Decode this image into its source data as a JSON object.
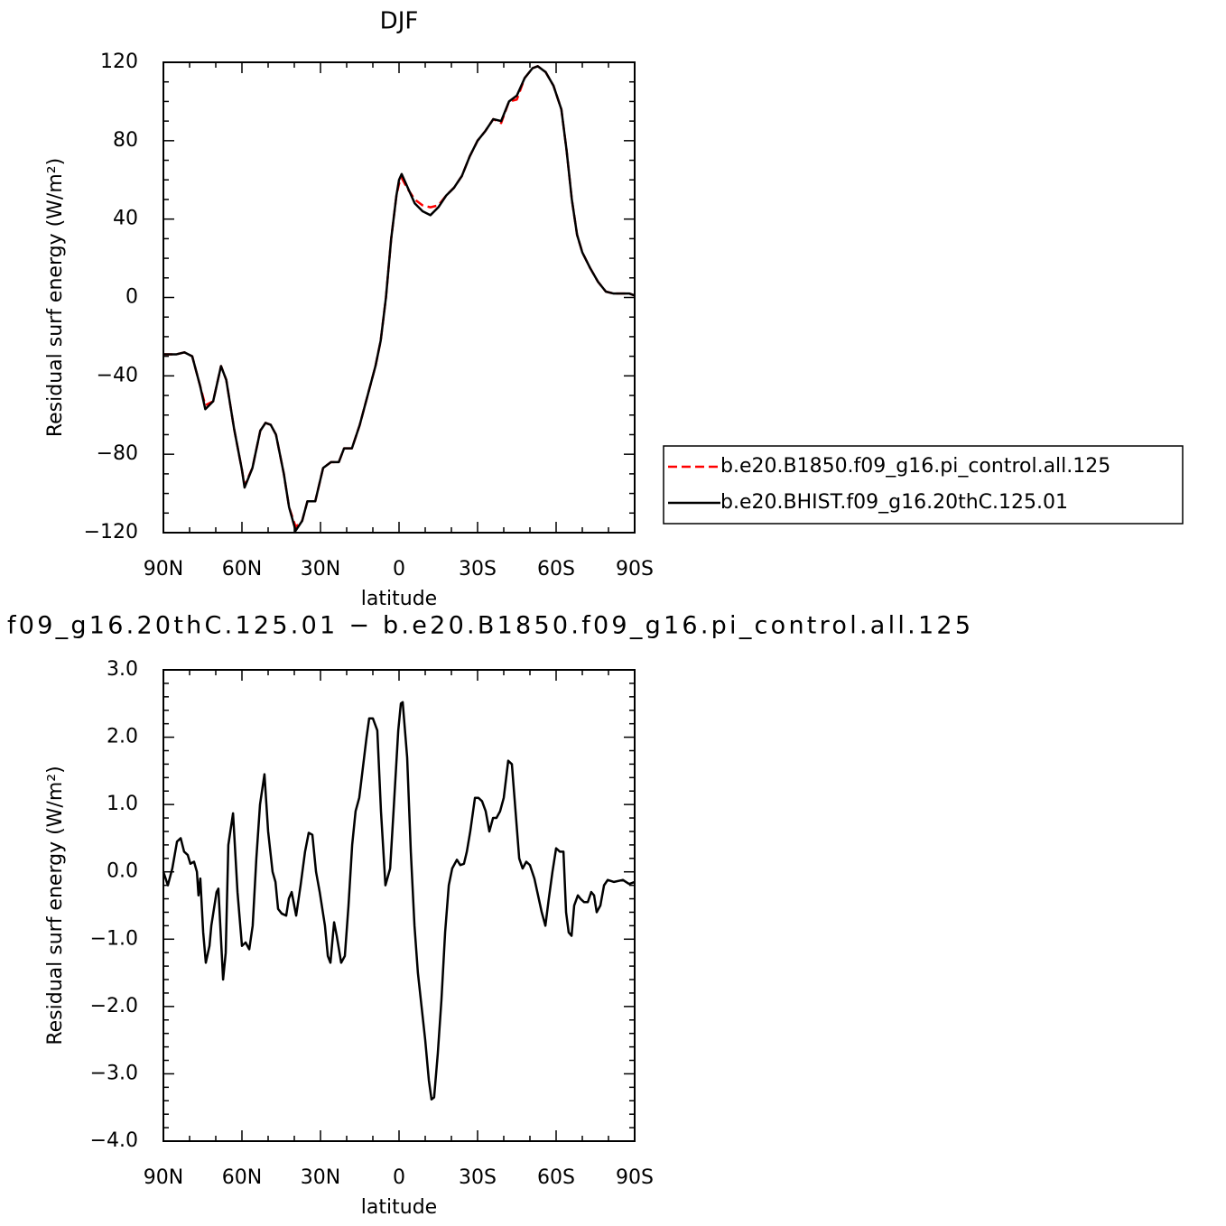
{
  "chart_data": [
    {
      "type": "line",
      "title": "DJF",
      "xlabel": "latitude",
      "ylabel": "Residual surf energy (W/m²)",
      "xlim": [
        90,
        -90
      ],
      "xticks": [
        {
          "value": 90,
          "label": "90N"
        },
        {
          "value": 60,
          "label": "60N"
        },
        {
          "value": 30,
          "label": "30N"
        },
        0,
        {
          "value": -30,
          "label": "30S"
        },
        {
          "value": -60,
          "label": "60S"
        },
        {
          "value": -90,
          "label": "90S"
        }
      ],
      "ylim": [
        -120,
        120
      ],
      "yticks": [
        {
          "value": -120,
          "label": "−120"
        },
        {
          "value": -80,
          "label": "−80"
        },
        {
          "value": -40,
          "label": "−40"
        },
        0,
        40,
        80,
        120
      ],
      "x": [
        90,
        85,
        82,
        79,
        76,
        74,
        71,
        68,
        66,
        63,
        60,
        59,
        56,
        53,
        51,
        49,
        47,
        44,
        42,
        39.5,
        37,
        35,
        32,
        29,
        26,
        23,
        21,
        18,
        15,
        12,
        9,
        7,
        5,
        3,
        1,
        0,
        -1,
        -3,
        -6,
        -9,
        -12,
        -15,
        -18,
        -21,
        -24,
        -27,
        -30,
        -33,
        -36,
        -39,
        -42,
        -45,
        -48,
        -51,
        -53,
        -56,
        -59,
        -62,
        -64,
        -66,
        -68,
        -70,
        -73,
        -76,
        -79,
        -82,
        -85,
        -88,
        -90
      ],
      "series": [
        {
          "name": "b.e20.B1850.f09_g16.pi_control.all.125",
          "color": "#ff0000",
          "line_style": "dashed",
          "values": [
            -29,
            -29,
            -28,
            -30,
            -45,
            -55,
            -53,
            -35,
            -42,
            -67,
            -88,
            -96,
            -87,
            -68,
            -64,
            -65,
            -70,
            -90,
            -107,
            -117,
            -114,
            -104,
            -104,
            -87,
            -84,
            -84,
            -77,
            -77,
            -65,
            -50,
            -35,
            -22,
            0,
            30,
            52,
            58,
            61,
            56,
            50,
            47,
            46,
            47,
            52,
            56,
            62,
            72,
            80,
            85,
            91,
            89,
            100,
            101,
            112,
            117,
            118,
            115,
            108,
            96,
            75,
            50,
            32,
            23,
            15,
            8,
            3,
            2,
            2,
            2,
            1
          ]
        },
        {
          "name": "b.e20.BHIST.f09_g16.20thC.125.01",
          "color": "#000000",
          "line_style": "solid",
          "values": [
            -29,
            -29,
            -28,
            -30,
            -45,
            -57,
            -53,
            -35,
            -42,
            -67,
            -88,
            -97,
            -87,
            -68,
            -64,
            -65,
            -70,
            -90,
            -107,
            -119,
            -114,
            -104,
            -104,
            -87,
            -84,
            -84,
            -77,
            -77,
            -65,
            -50,
            -35,
            -22,
            0,
            30,
            52,
            60,
            63,
            57,
            48,
            44,
            42,
            46,
            52,
            56,
            62,
            72,
            80,
            85,
            91,
            90,
            100,
            103,
            112,
            117,
            118,
            115,
            108,
            96,
            75,
            50,
            32,
            23,
            15,
            8,
            3,
            2,
            2,
            2,
            1
          ]
        }
      ]
    },
    {
      "type": "line",
      "title": "f09_g16.20thC.125.01 − b.e20.B1850.f09_g16.pi_control.all.125",
      "xlabel": "latitude",
      "ylabel": "Residual surf energy (W/m²)",
      "xlim": [
        90,
        -90
      ],
      "xticks": [
        {
          "value": 90,
          "label": "90N"
        },
        {
          "value": 60,
          "label": "60N"
        },
        {
          "value": 30,
          "label": "30N"
        },
        0,
        {
          "value": -30,
          "label": "30S"
        },
        {
          "value": -60,
          "label": "60S"
        },
        {
          "value": -90,
          "label": "90S"
        }
      ],
      "ylim": [
        -4,
        3
      ],
      "yticks": [
        {
          "value": -4,
          "label": "−4.0"
        },
        {
          "value": -3,
          "label": "−3.0"
        },
        {
          "value": -2,
          "label": "−2.0"
        },
        {
          "value": -1,
          "label": "−1.0"
        },
        {
          "value": 0,
          "label": "0.0"
        },
        {
          "value": 1,
          "label": "1.0"
        },
        {
          "value": 2,
          "label": "2.0"
        },
        {
          "value": 3,
          "label": "3.0"
        }
      ],
      "x": [
        90,
        88.3,
        86.6,
        84.8,
        83.4,
        82.1,
        80.7,
        79.7,
        78.3,
        77.2,
        76.6,
        75.9,
        74.8,
        73.8,
        72.4,
        71.7,
        69.7,
        69.0,
        67.2,
        66.2,
        65.2,
        63.4,
        61.7,
        60.0,
        58.6,
        57.2,
        55.9,
        54.5,
        53.1,
        51.4,
        50.0,
        48.3,
        47.2,
        46.2,
        44.8,
        43.1,
        42.1,
        41.0,
        39.3,
        37.6,
        35.9,
        34.5,
        33.1,
        31.7,
        30.3,
        28.3,
        27.2,
        26.2,
        24.8,
        23.8,
        22.1,
        20.7,
        19.3,
        17.9,
        16.6,
        15.2,
        13.8,
        12.4,
        11.4,
        10.0,
        8.3,
        6.9,
        5.2,
        3.4,
        2.1,
        0.3,
        -0.7,
        -1.4,
        -3.1,
        -4.5,
        -5.9,
        -7.2,
        -8.6,
        -10.0,
        -11.4,
        -12.4,
        -13.4,
        -14.8,
        -16.2,
        -17.6,
        -19.0,
        -20.3,
        -22.1,
        -23.4,
        -24.8,
        -25.9,
        -27.2,
        -29.0,
        -30.3,
        -31.7,
        -33.1,
        -34.5,
        -35.9,
        -37.2,
        -38.6,
        -40.0,
        -41.7,
        -43.1,
        -44.5,
        -45.9,
        -47.2,
        -48.6,
        -50.0,
        -51.7,
        -53.1,
        -54.5,
        -55.9,
        -57.2,
        -58.6,
        -60.0,
        -61.4,
        -62.8,
        -63.8,
        -64.8,
        -65.9,
        -66.9,
        -68.3,
        -69.3,
        -70.7,
        -72.1,
        -73.4,
        -74.5,
        -75.5,
        -76.9,
        -78.3,
        -79.7,
        -82.1,
        -85.5,
        -87.9,
        -90
      ],
      "series": [
        {
          "color": "#000000",
          "line_style": "solid",
          "values": [
            0.0,
            -0.2,
            0.05,
            0.45,
            0.5,
            0.3,
            0.25,
            0.12,
            0.15,
            0.0,
            -0.35,
            -0.1,
            -0.9,
            -1.35,
            -1.1,
            -0.8,
            -0.3,
            -0.25,
            -1.6,
            -1.2,
            0.4,
            0.87,
            -0.3,
            -1.1,
            -1.05,
            -1.15,
            -0.8,
            0.2,
            1.0,
            1.45,
            0.6,
            0.0,
            -0.15,
            -0.55,
            -0.62,
            -0.65,
            -0.4,
            -0.3,
            -0.65,
            -0.2,
            0.3,
            0.58,
            0.55,
            0.0,
            -0.3,
            -0.8,
            -1.25,
            -1.35,
            -0.75,
            -0.95,
            -1.35,
            -1.25,
            -0.5,
            0.4,
            0.9,
            1.1,
            1.55,
            2.0,
            2.28,
            2.28,
            2.1,
            0.9,
            -0.2,
            0.05,
            0.9,
            2.1,
            2.5,
            2.52,
            1.7,
            0.3,
            -0.8,
            -1.5,
            -2.0,
            -2.5,
            -3.1,
            -3.38,
            -3.35,
            -2.7,
            -1.9,
            -0.9,
            -0.2,
            0.05,
            0.18,
            0.1,
            0.12,
            0.3,
            0.6,
            1.1,
            1.1,
            1.05,
            0.9,
            0.6,
            0.8,
            0.8,
            0.9,
            1.1,
            1.65,
            1.6,
            0.9,
            0.2,
            0.05,
            0.15,
            0.1,
            -0.1,
            -0.35,
            -0.6,
            -0.8,
            -0.4,
            0.0,
            0.35,
            0.3,
            0.3,
            -0.6,
            -0.9,
            -0.95,
            -0.5,
            -0.35,
            -0.4,
            -0.45,
            -0.45,
            -0.3,
            -0.35,
            -0.6,
            -0.5,
            -0.2,
            -0.12,
            -0.15,
            -0.12,
            -0.18,
            -0.15
          ]
        }
      ]
    }
  ]
}
